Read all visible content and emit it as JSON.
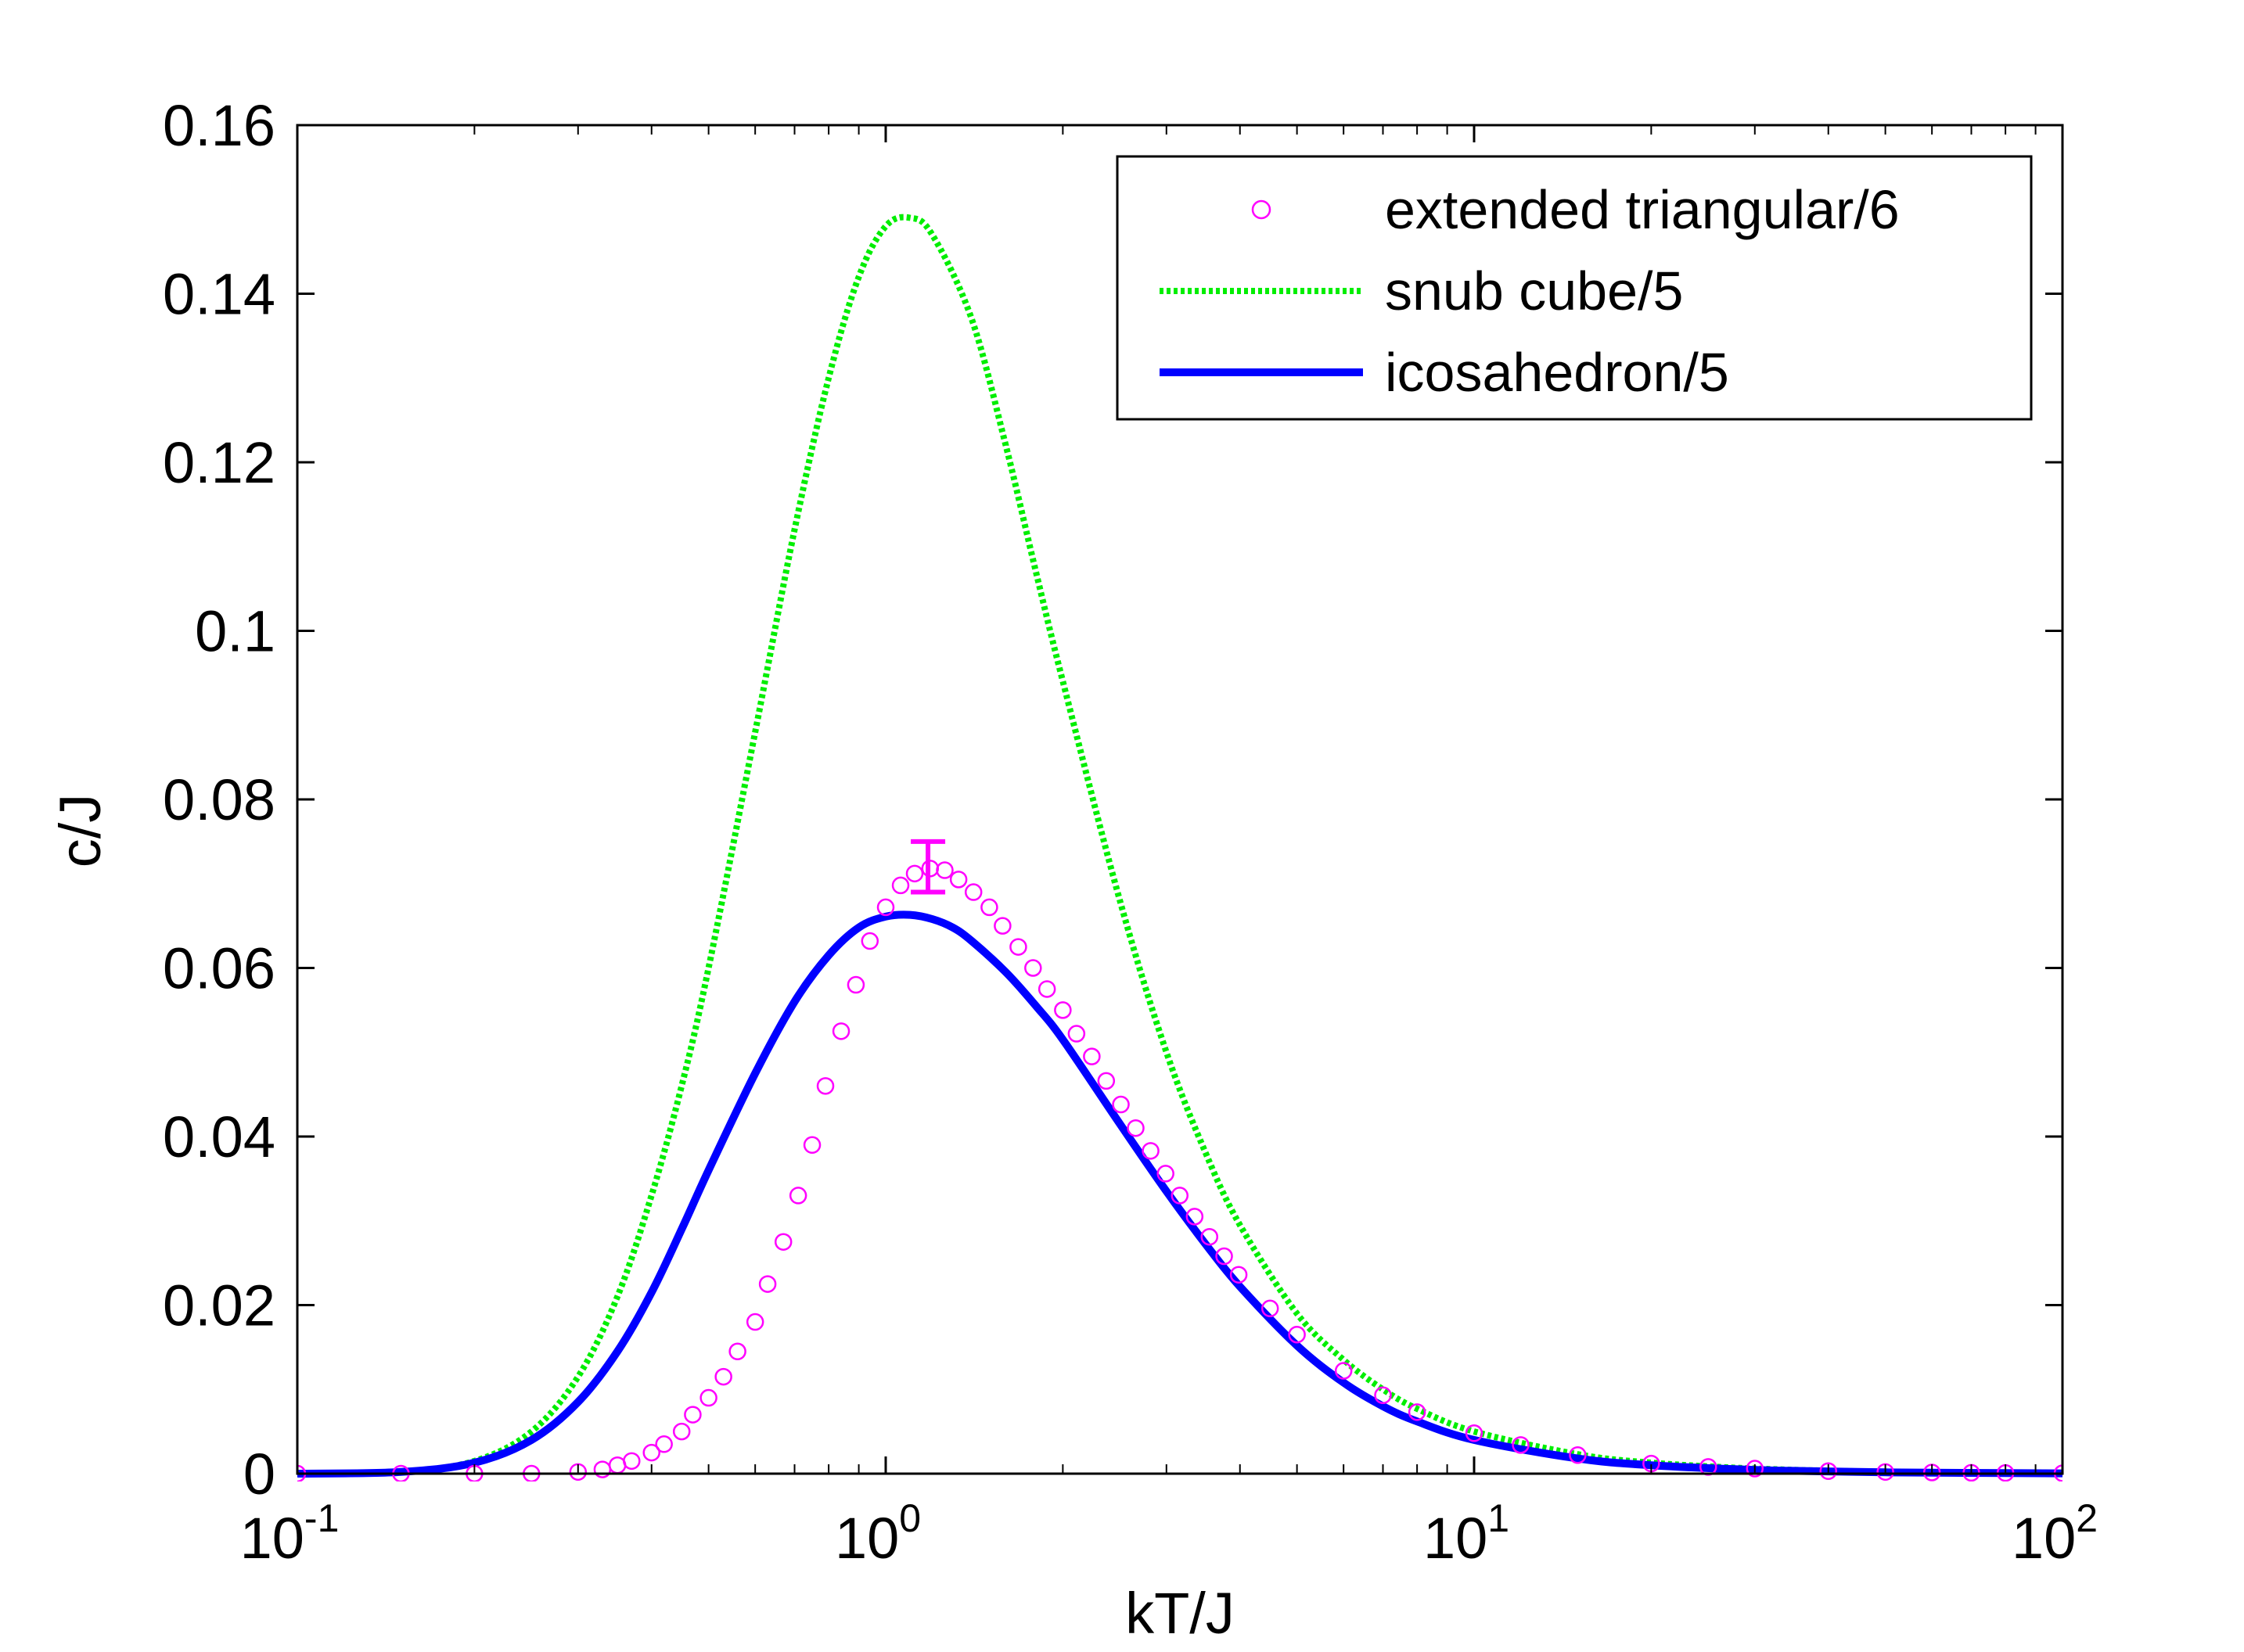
{
  "chart_data": {
    "type": "line",
    "xscale": "log",
    "xlim": [
      0.1,
      100
    ],
    "ylim": [
      0,
      0.16
    ],
    "xlabel": "kT/J",
    "ylabel": "c/J",
    "title": "",
    "grid": false,
    "legend_position": "top-right",
    "x_ticks": [
      {
        "value": 0.1,
        "base": "10",
        "exp": "-1"
      },
      {
        "value": 1,
        "base": "10",
        "exp": "0"
      },
      {
        "value": 10,
        "base": "10",
        "exp": "1"
      },
      {
        "value": 100,
        "base": "10",
        "exp": "2"
      }
    ],
    "y_ticks": [
      {
        "value": 0,
        "label": "0"
      },
      {
        "value": 0.02,
        "label": "0.02"
      },
      {
        "value": 0.04,
        "label": "0.04"
      },
      {
        "value": 0.06,
        "label": "0.06"
      },
      {
        "value": 0.08,
        "label": "0.08"
      },
      {
        "value": 0.1,
        "label": "0.1"
      },
      {
        "value": 0.12,
        "label": "0.12"
      },
      {
        "value": 0.14,
        "label": "0.14"
      },
      {
        "value": 0.16,
        "label": "0.16"
      }
    ],
    "series": [
      {
        "name": "extended triangular/6",
        "style": "markers",
        "marker": "circle",
        "color": "#ff00ff",
        "x": [
          0.1,
          0.15,
          0.2,
          0.25,
          0.3,
          0.33,
          0.35,
          0.37,
          0.4,
          0.42,
          0.45,
          0.47,
          0.5,
          0.53,
          0.56,
          0.6,
          0.63,
          0.67,
          0.71,
          0.75,
          0.79,
          0.84,
          0.89,
          0.94,
          1.0,
          1.06,
          1.12,
          1.19,
          1.26,
          1.33,
          1.41,
          1.5,
          1.58,
          1.68,
          1.78,
          1.88,
          2.0,
          2.11,
          2.24,
          2.37,
          2.51,
          2.66,
          2.82,
          2.99,
          3.16,
          3.35,
          3.55,
          3.76,
          3.98,
          4.5,
          5.0,
          6.0,
          7.0,
          8.0,
          10,
          12,
          15,
          20,
          25,
          30,
          40,
          50,
          60,
          70,
          80,
          100
        ],
        "y": [
          0,
          0,
          0,
          0,
          0.0002,
          0.0005,
          0.001,
          0.0015,
          0.0025,
          0.0035,
          0.005,
          0.007,
          0.009,
          0.0115,
          0.0145,
          0.018,
          0.0225,
          0.0275,
          0.033,
          0.039,
          0.046,
          0.0525,
          0.058,
          0.0632,
          0.0672,
          0.0698,
          0.0712,
          0.0718,
          0.0716,
          0.0705,
          0.069,
          0.0672,
          0.065,
          0.0625,
          0.06,
          0.0575,
          0.055,
          0.0522,
          0.0495,
          0.0466,
          0.0438,
          0.041,
          0.0383,
          0.0356,
          0.033,
          0.0305,
          0.0281,
          0.0258,
          0.0236,
          0.0196,
          0.0165,
          0.0122,
          0.0093,
          0.0073,
          0.0048,
          0.0034,
          0.0022,
          0.0012,
          0.0008,
          0.0006,
          0.0003,
          0.0002,
          0.00014,
          0.0001,
          8e-05,
          5e-05
        ],
        "error_bar": {
          "x": 1.18,
          "y": 0.072,
          "low": 0.069,
          "high": 0.075
        }
      },
      {
        "name": "snub cube/5",
        "style": "dotted",
        "color": "#00ee00",
        "x": [
          0.1,
          0.15,
          0.2,
          0.25,
          0.3,
          0.35,
          0.4,
          0.45,
          0.5,
          0.6,
          0.7,
          0.8,
          0.9,
          1.0,
          1.1,
          1.2,
          1.4,
          1.6,
          1.8,
          2.0,
          2.5,
          3.0,
          3.5,
          4.0,
          5.0,
          6.0,
          7.0,
          8.0,
          10,
          15,
          20,
          30,
          50,
          100
        ],
        "y": [
          0,
          0.0002,
          0.0015,
          0.005,
          0.0115,
          0.021,
          0.033,
          0.046,
          0.06,
          0.088,
          0.112,
          0.13,
          0.142,
          0.148,
          0.149,
          0.147,
          0.137,
          0.122,
          0.107,
          0.094,
          0.068,
          0.05,
          0.038,
          0.0295,
          0.019,
          0.0135,
          0.01,
          0.0077,
          0.005,
          0.0023,
          0.0013,
          0.0006,
          0.00022,
          5e-05
        ]
      },
      {
        "name": "icosahedron/5",
        "style": "solid",
        "color": "#0000ff",
        "x": [
          0.1,
          0.15,
          0.2,
          0.25,
          0.3,
          0.35,
          0.4,
          0.45,
          0.5,
          0.6,
          0.7,
          0.8,
          0.9,
          1.0,
          1.1,
          1.2,
          1.3,
          1.4,
          1.6,
          1.8,
          2.0,
          2.5,
          3.0,
          3.5,
          4.0,
          5.0,
          6.0,
          7.0,
          8.0,
          10,
          15,
          20,
          30,
          50,
          100
        ],
        "y": [
          0,
          0.0002,
          0.0013,
          0.004,
          0.0085,
          0.0145,
          0.0215,
          0.029,
          0.036,
          0.0475,
          0.056,
          0.0615,
          0.0648,
          0.0661,
          0.0663,
          0.0658,
          0.0648,
          0.0632,
          0.0595,
          0.0555,
          0.0515,
          0.0415,
          0.0335,
          0.0272,
          0.0222,
          0.0152,
          0.0108,
          0.008,
          0.0062,
          0.004,
          0.0018,
          0.001,
          0.00045,
          0.00016,
          4e-05
        ]
      }
    ]
  }
}
